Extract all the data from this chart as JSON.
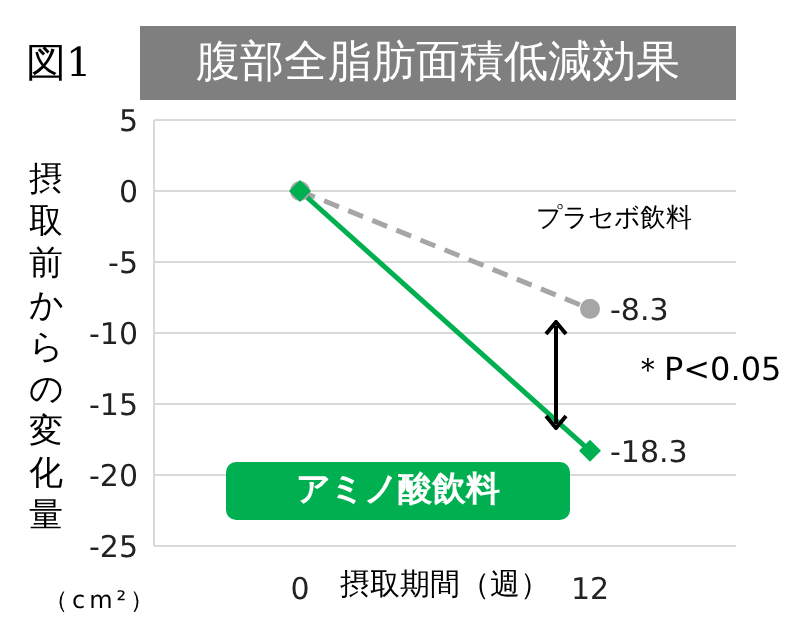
{
  "chart_data": {
    "type": "line",
    "title": "腹部全脂肪面積低減効果",
    "xlabel": "摂取期間（週）",
    "ylabel": "摂取前からの変化量",
    "annotations": [
      "図1",
      "（cm²）",
      "＊P<0.05"
    ],
    "categories": [
      "0",
      "12"
    ],
    "series": [
      {
        "name": "プラセボ飲料",
        "color": "#a6a6a6",
        "values": [
          0,
          -8.3
        ],
        "value_labels": [
          null,
          "-8.3"
        ],
        "line_style": "dashed",
        "marker": "circle"
      },
      {
        "name": "アミノ酸飲料",
        "color": "#00b050",
        "values": [
          0,
          -18.3
        ],
        "value_labels": [
          null,
          "-18.3"
        ],
        "line_style": "solid",
        "marker": "diamond"
      }
    ],
    "ylim": [
      -25,
      5
    ],
    "yticks": [
      -25,
      -20,
      -15,
      -10,
      -5,
      0,
      5
    ],
    "grid": "y",
    "legend": false
  }
}
